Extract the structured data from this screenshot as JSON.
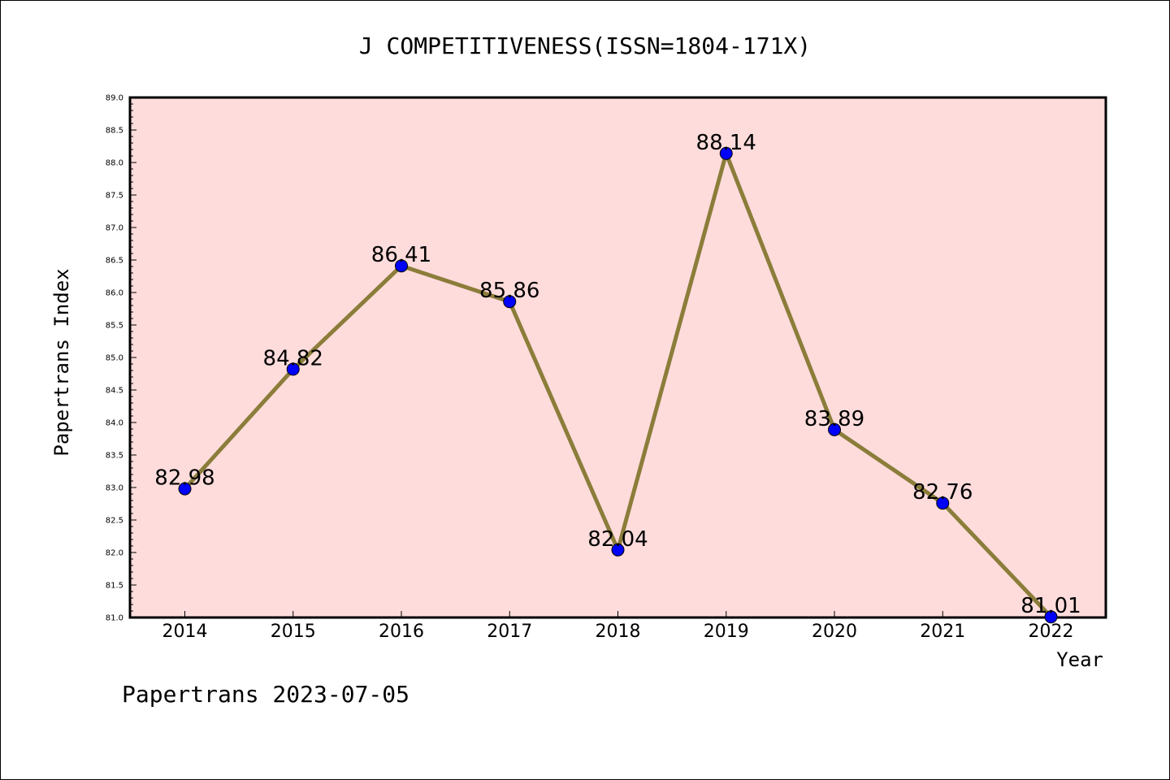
{
  "chart_data": {
    "type": "line",
    "title": "J COMPETITIVENESS(ISSN=1804-171X)",
    "xlabel": "Year",
    "ylabel": "Papertrans Index",
    "x": [
      "2014",
      "2015",
      "2016",
      "2017",
      "2018",
      "2019",
      "2020",
      "2021",
      "2022"
    ],
    "values": [
      82.98,
      84.82,
      86.41,
      85.86,
      82.04,
      88.14,
      83.89,
      82.76,
      81.01
    ],
    "data_labels": [
      "82.98",
      "84.82",
      "86.41",
      "85.86",
      "82.04",
      "88.14",
      "83.89",
      "82.76",
      "81.01"
    ],
    "ylim": [
      81.0,
      89.0
    ],
    "y_ticks": [
      "81.0",
      "81.5",
      "82.0",
      "82.5",
      "83.0",
      "83.5",
      "84.0",
      "84.5",
      "85.0",
      "85.5",
      "86.0",
      "86.5",
      "87.0",
      "87.5",
      "88.0",
      "88.5",
      "89.0"
    ],
    "grid": false,
    "line_color": "#8B7D3A",
    "marker_color": "#0000FF",
    "plot_background": "#FFDCDC"
  },
  "footer": {
    "text": "Papertrans 2023-07-05"
  }
}
